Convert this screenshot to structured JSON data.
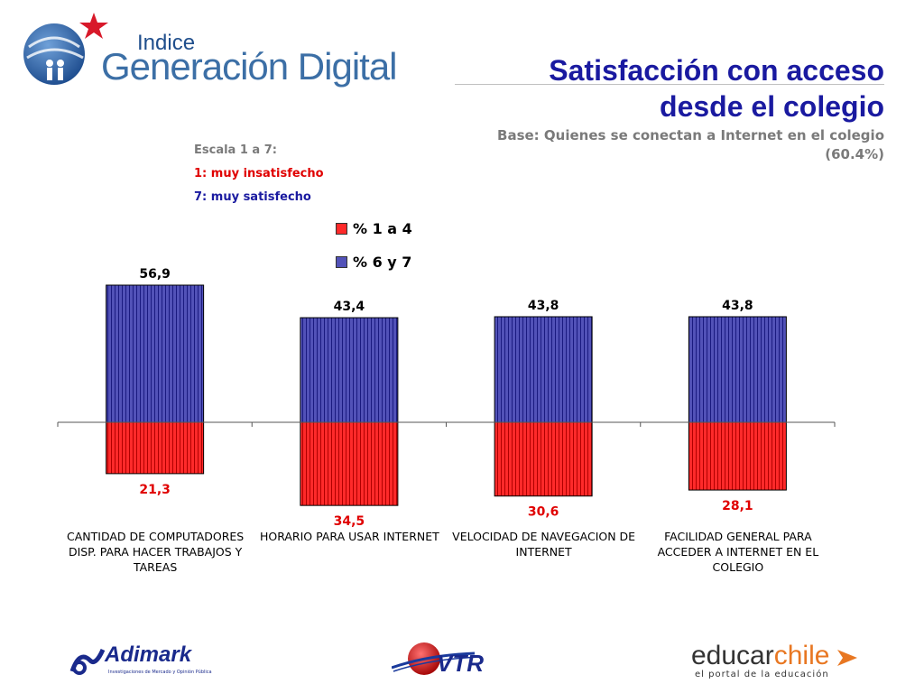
{
  "header": {
    "logo_small": "Indice",
    "logo_main": "Generación Digital"
  },
  "title": "Satisfacción con acceso desde el colegio",
  "subtitle": "Base: Quienes se conectan a Internet en el colegio (60.4%)",
  "scale": {
    "title": "Escala 1 a 7:",
    "low": "1: muy insatisfecho",
    "high": "7: muy satisfecho"
  },
  "colors": {
    "positive": "#5252b8",
    "positive_dark": "#1a1a80",
    "negative": "#ff2a2a",
    "negative_dark": "#b00000",
    "title": "#1a1aa0"
  },
  "chart_data": {
    "type": "bar",
    "stacked_diverging": true,
    "categories": [
      "CANTIDAD DE COMPUTADORES DISP. PARA HACER TRABAJOS Y TAREAS",
      "HORARIO PARA USAR INTERNET",
      "VELOCIDAD DE NAVEGACION DE INTERNET",
      "FACILIDAD GENERAL PARA ACCEDER A INTERNET EN EL COLEGIO"
    ],
    "category_lines": [
      [
        "CANTIDAD DE COMPUTADORES",
        "DISP. PARA HACER TRABAJOS Y",
        "TAREAS"
      ],
      [
        "HORARIO PARA USAR INTERNET"
      ],
      [
        "VELOCIDAD DE NAVEGACION DE",
        "INTERNET"
      ],
      [
        "FACILIDAD GENERAL PARA",
        "ACCEDER A INTERNET EN EL",
        "COLEGIO"
      ]
    ],
    "series": [
      {
        "name": "% 1 a 4",
        "values": [
          21.3,
          34.5,
          30.6,
          28.1
        ],
        "labels": [
          "21,3",
          "34,5",
          "30,6",
          "28,1"
        ]
      },
      {
        "name": "% 6 y 7",
        "values": [
          56.9,
          43.4,
          43.8,
          43.8
        ],
        "labels": [
          "56,9",
          "43,4",
          "43,8",
          "43,8"
        ]
      }
    ],
    "legend": "top-center"
  },
  "footer": {
    "sponsor_1": "Adimark",
    "sponsor_1_tagline": "Investigaciones de Mercado y Opinión Pública",
    "sponsor_2": "VTR",
    "sponsor_3_a": "educar",
    "sponsor_3_b": "chile",
    "sponsor_3_tagline": "el portal de la educación"
  }
}
